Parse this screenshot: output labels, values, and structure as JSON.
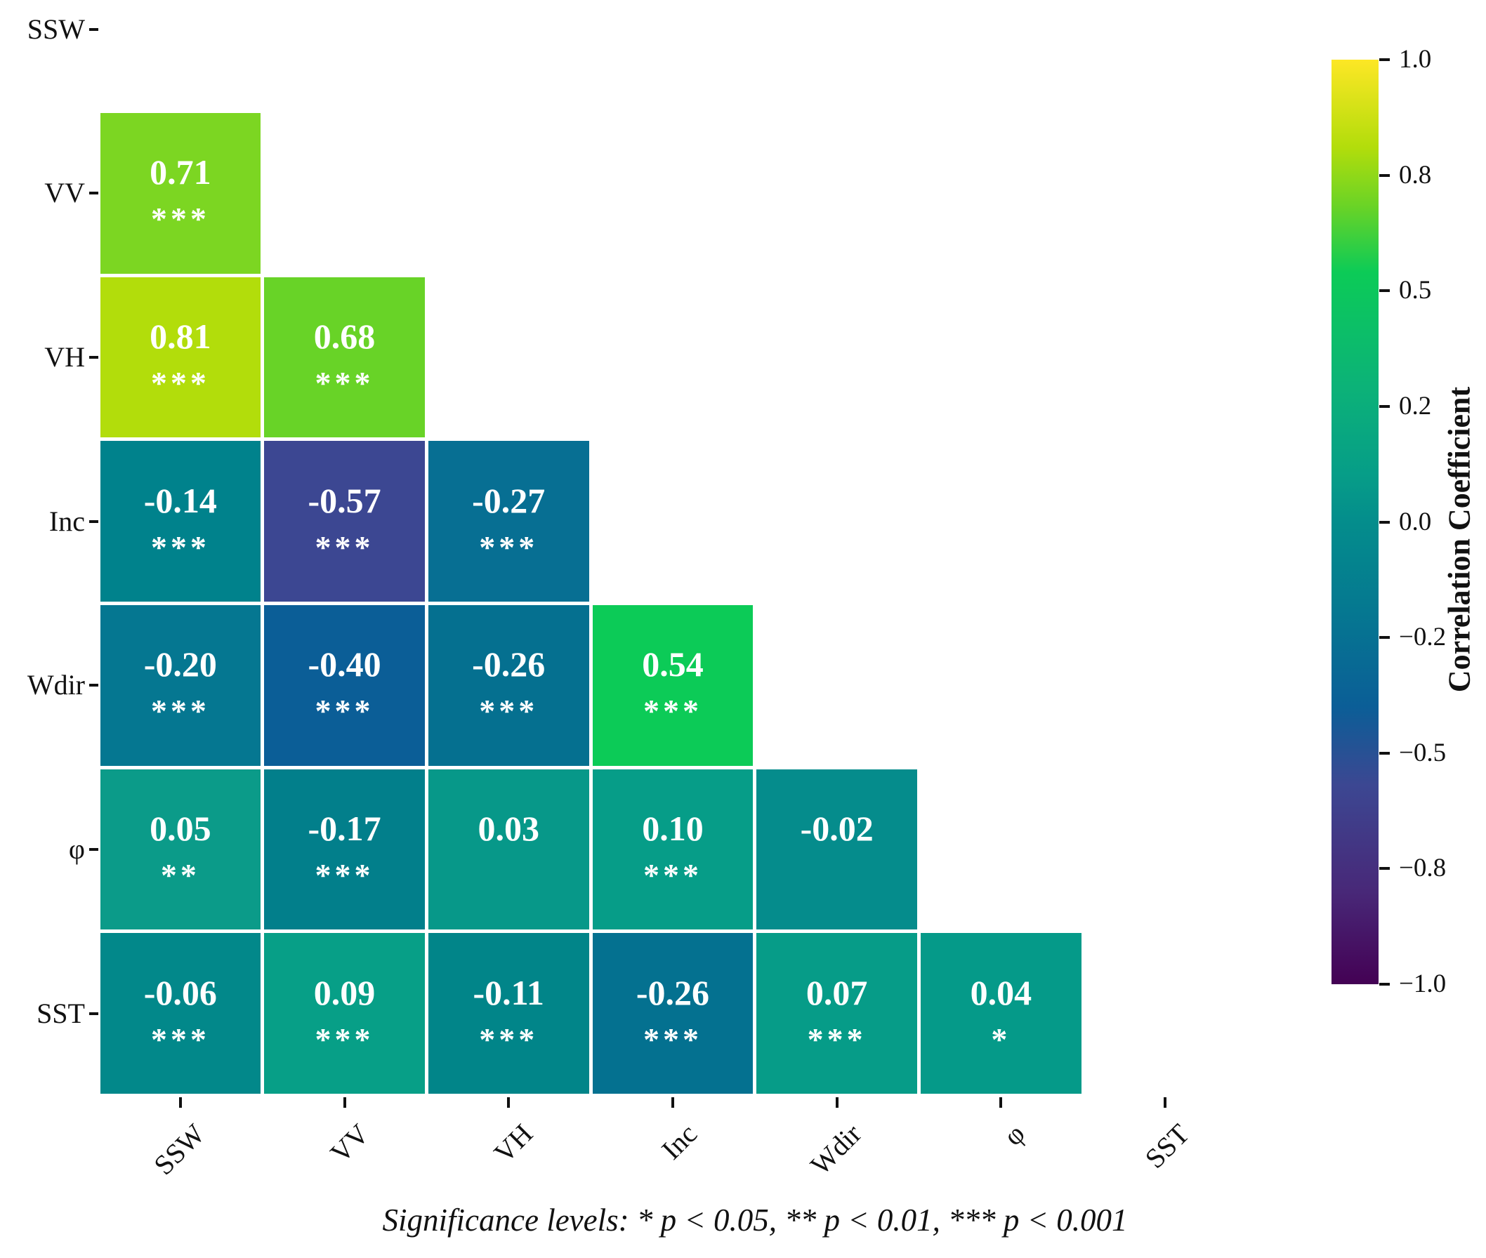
{
  "figure": {
    "background": "#ffffff"
  },
  "chart_data": {
    "type": "heatmap",
    "subtype": "correlation-matrix-lower-triangle",
    "title": "",
    "variables": [
      "SSW",
      "VV",
      "VH",
      "Inc",
      "Wdir",
      "φ",
      "SST"
    ],
    "vmin": -1.0,
    "vmax": 1.0,
    "grid": "white gaps between cells, diagonal and upper triangle masked",
    "cell_text_color": "#ffffff",
    "rows": [
      {
        "var": "SSW",
        "cells": []
      },
      {
        "var": "VV",
        "cells": [
          {
            "col": "SSW",
            "value": 0.71,
            "label": "0.71",
            "stars": "***",
            "color": "#7cd622"
          }
        ]
      },
      {
        "var": "VH",
        "cells": [
          {
            "col": "SSW",
            "value": 0.81,
            "label": "0.81",
            "stars": "***",
            "color": "#b2dd0b"
          },
          {
            "col": "VV",
            "value": 0.68,
            "label": "0.68",
            "stars": "***",
            "color": "#68d327"
          }
        ]
      },
      {
        "var": "Inc",
        "cells": [
          {
            "col": "SSW",
            "value": -0.14,
            "label": "-0.14",
            "stars": "***",
            "color": "#00828c"
          },
          {
            "col": "VV",
            "value": -0.57,
            "label": "-0.57",
            "stars": "***",
            "color": "#3c4792"
          },
          {
            "col": "VH",
            "value": -0.27,
            "label": "-0.27",
            "stars": "***",
            "color": "#076f93"
          }
        ]
      },
      {
        "var": "Wdir",
        "cells": [
          {
            "col": "SSW",
            "value": -0.2,
            "label": "-0.20",
            "stars": "***",
            "color": "#057791"
          },
          {
            "col": "VV",
            "value": -0.4,
            "label": "-0.40",
            "stars": "***",
            "color": "#0b5e97"
          },
          {
            "col": "VH",
            "value": -0.26,
            "label": "-0.26",
            "stars": "***",
            "color": "#057090"
          },
          {
            "col": "Inc",
            "value": 0.54,
            "label": "0.54",
            "stars": "***",
            "color": "#0ccb57"
          }
        ]
      },
      {
        "var": "φ",
        "cells": [
          {
            "col": "SSW",
            "value": 0.05,
            "label": "0.05",
            "stars": "**",
            "color": "#0b9b89"
          },
          {
            "col": "VV",
            "value": -0.17,
            "label": "-0.17",
            "stars": "***",
            "color": "#027f8b"
          },
          {
            "col": "VH",
            "value": 0.03,
            "label": "0.03",
            "stars": "",
            "color": "#079889"
          },
          {
            "col": "Inc",
            "value": 0.1,
            "label": "0.10",
            "stars": "***",
            "color": "#069d88"
          },
          {
            "col": "Wdir",
            "value": -0.02,
            "label": "-0.02",
            "stars": "",
            "color": "#058c8c"
          }
        ]
      },
      {
        "var": "SST",
        "cells": [
          {
            "col": "SSW",
            "value": -0.06,
            "label": "-0.06",
            "stars": "***",
            "color": "#02888a"
          },
          {
            "col": "VV",
            "value": 0.09,
            "label": "0.09",
            "stars": "***",
            "color": "#079f87"
          },
          {
            "col": "VH",
            "value": -0.11,
            "label": "-0.11",
            "stars": "***",
            "color": "#018589"
          },
          {
            "col": "Inc",
            "value": -0.26,
            "label": "-0.26",
            "stars": "***",
            "color": "#047190"
          },
          {
            "col": "Wdir",
            "value": 0.07,
            "label": "0.07",
            "stars": "***",
            "color": "#069c88"
          },
          {
            "col": "φ",
            "value": 0.04,
            "label": "0.04",
            "stars": "*",
            "color": "#059a89"
          }
        ]
      }
    ],
    "colorbar": {
      "label": "Correlation Coefficient",
      "ticks": [
        {
          "label": "1.0",
          "value": 1.0
        },
        {
          "label": "0.8",
          "value": 0.8
        },
        {
          "label": "0.5",
          "value": 0.5
        },
        {
          "label": "0.2",
          "value": 0.2
        },
        {
          "label": "0.0",
          "value": 0.0
        },
        {
          "label": "−0.2",
          "value": -0.2
        },
        {
          "label": "−0.5",
          "value": -0.5
        },
        {
          "label": "−0.8",
          "value": -0.8
        },
        {
          "label": "−1.0",
          "value": -1.0
        }
      ],
      "gradient": [
        {
          "pos": 0.0,
          "color": "#fde725"
        },
        {
          "pos": 0.095,
          "color": "#b2dd0b"
        },
        {
          "pos": 0.16,
          "color": "#68d327"
        },
        {
          "pos": 0.23,
          "color": "#0ccb57"
        },
        {
          "pos": 0.35,
          "color": "#0cb377"
        },
        {
          "pos": 0.45,
          "color": "#069d88"
        },
        {
          "pos": 0.5,
          "color": "#048d8c"
        },
        {
          "pos": 0.6,
          "color": "#057791"
        },
        {
          "pos": 0.7,
          "color": "#0b5e97"
        },
        {
          "pos": 0.785,
          "color": "#3c4792"
        },
        {
          "pos": 0.9,
          "color": "#482878"
        },
        {
          "pos": 1.0,
          "color": "#440154"
        }
      ]
    },
    "significance_note": "Significance levels: * p < 0.05, ** p < 0.01, *** p < 0.001"
  }
}
